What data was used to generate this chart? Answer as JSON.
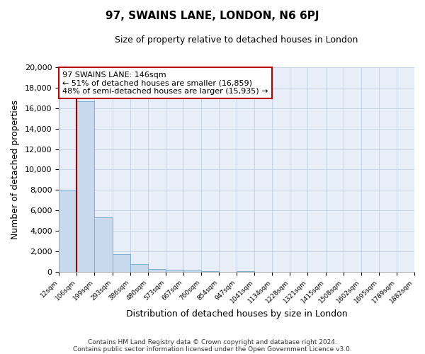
{
  "title": "97, SWAINS LANE, LONDON, N6 6PJ",
  "subtitle": "Size of property relative to detached houses in London",
  "xlabel": "Distribution of detached houses by size in London",
  "ylabel": "Number of detached properties",
  "bin_labels": [
    "12sqm",
    "106sqm",
    "199sqm",
    "293sqm",
    "386sqm",
    "480sqm",
    "573sqm",
    "667sqm",
    "760sqm",
    "854sqm",
    "947sqm",
    "1041sqm",
    "1134sqm",
    "1228sqm",
    "1321sqm",
    "1415sqm",
    "1508sqm",
    "1602sqm",
    "1695sqm",
    "1789sqm",
    "1882sqm"
  ],
  "bar_heights": [
    8050,
    16650,
    5300,
    1750,
    800,
    300,
    200,
    130,
    110,
    0,
    100,
    0,
    0,
    0,
    0,
    0,
    0,
    0,
    0,
    0
  ],
  "bar_color": "#c8d9ee",
  "bar_edge_color": "#7aafd4",
  "vline_x": 1,
  "vline_color": "#aa0000",
  "ylim": [
    0,
    20000
  ],
  "yticks": [
    0,
    2000,
    4000,
    6000,
    8000,
    10000,
    12000,
    14000,
    16000,
    18000,
    20000
  ],
  "grid_color": "#c8d4e8",
  "bg_color": "#e8eef8",
  "annotation_title": "97 SWAINS LANE: 146sqm",
  "annotation_line1": "← 51% of detached houses are smaller (16,859)",
  "annotation_line2": "48% of semi-detached houses are larger (15,935) →",
  "annotation_box_color": "#ffffff",
  "annotation_border_color": "#bb0000",
  "footer1": "Contains HM Land Registry data © Crown copyright and database right 2024.",
  "footer2": "Contains public sector information licensed under the Open Government Licence v3.0."
}
